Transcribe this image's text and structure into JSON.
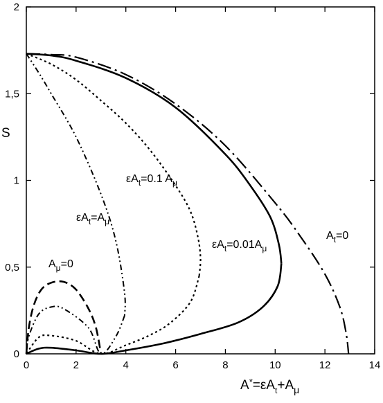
{
  "chart_data": {
    "type": "line",
    "xlim": [
      0,
      14
    ],
    "ylim": [
      0,
      2
    ],
    "x_ticks": [
      "0",
      "2",
      "4",
      "6",
      "8",
      "10",
      "12",
      "14"
    ],
    "y_ticks": [
      "0",
      "0,5",
      "1",
      "1,5",
      "2"
    ],
    "ylabel": "S",
    "xlabel": {
      "lhs": "A",
      "star": "*",
      "eq": "=εA",
      "sub_t": "t",
      "plus": "+A",
      "sub_mu": "μ"
    },
    "grid": false,
    "series": [
      {
        "style": "dashdot-long",
        "label": {
          "base": "A",
          "sub": "t",
          "rest": "=0"
        },
        "points": [
          [
            0,
            1.73
          ],
          [
            1,
            1.725
          ],
          [
            2,
            1.71
          ],
          [
            4,
            1.61
          ],
          [
            6,
            1.44
          ],
          [
            8,
            1.2
          ],
          [
            10,
            0.87
          ],
          [
            11,
            0.68
          ],
          [
            12,
            0.46
          ],
          [
            12.6,
            0.27
          ],
          [
            12.85,
            0.12
          ],
          [
            12.95,
            0
          ]
        ]
      },
      {
        "style": "solid",
        "label": {
          "base": "εA",
          "sub": "t",
          "rest": "=0.01A",
          "sub2": "μ"
        },
        "points_upper": [
          [
            0,
            1.73
          ],
          [
            1,
            1.72
          ],
          [
            2,
            1.69
          ],
          [
            4,
            1.59
          ],
          [
            6,
            1.42
          ],
          [
            8,
            1.15
          ],
          [
            9,
            0.97
          ],
          [
            9.8,
            0.79
          ],
          [
            10.15,
            0.63
          ],
          [
            10.25,
            0.52
          ]
        ],
        "points_lower": [
          [
            10.25,
            0.52
          ],
          [
            10.1,
            0.39
          ],
          [
            9.5,
            0.27
          ],
          [
            8.5,
            0.18
          ],
          [
            7,
            0.115
          ],
          [
            5.5,
            0.06
          ],
          [
            4,
            0.02
          ],
          [
            3,
            0
          ],
          [
            2,
            0.02
          ],
          [
            1,
            0.035
          ],
          [
            0.5,
            0.03
          ],
          [
            0,
            0
          ]
        ]
      },
      {
        "style": "dotted",
        "label": {
          "base": "εA",
          "sub": "t",
          "rest": "=0.1 A",
          "sub2": "μ"
        },
        "points_upper": [
          [
            0,
            1.73
          ],
          [
            1,
            1.67
          ],
          [
            2,
            1.58
          ],
          [
            3,
            1.46
          ],
          [
            4,
            1.33
          ],
          [
            5,
            1.17
          ],
          [
            6,
            0.97
          ],
          [
            6.6,
            0.82
          ],
          [
            6.9,
            0.67
          ],
          [
            7,
            0.55
          ],
          [
            6.95,
            0.45
          ]
        ],
        "points_lower": [
          [
            6.95,
            0.45
          ],
          [
            6.6,
            0.3
          ],
          [
            5.8,
            0.18
          ],
          [
            5,
            0.11
          ],
          [
            4,
            0.05
          ],
          [
            3,
            0
          ],
          [
            2,
            0.075
          ],
          [
            1,
            0.105
          ],
          [
            0.5,
            0.095
          ],
          [
            0,
            0
          ]
        ]
      },
      {
        "style": "dashdotdot",
        "label": {
          "base": "εA",
          "sub": "t",
          "rest": "=A",
          "sub2": "μ"
        },
        "points_upper": [
          [
            0,
            1.73
          ],
          [
            0.5,
            1.62
          ],
          [
            1,
            1.5
          ],
          [
            2,
            1.25
          ],
          [
            3,
            0.92
          ],
          [
            3.6,
            0.65
          ],
          [
            3.95,
            0.35
          ],
          [
            3.95,
            0.22
          ]
        ],
        "points_lower": [
          [
            3.95,
            0.22
          ],
          [
            3.6,
            0.1
          ],
          [
            3,
            0
          ],
          [
            2.5,
            0.15
          ],
          [
            1.5,
            0.26
          ],
          [
            1,
            0.27
          ],
          [
            0.5,
            0.23
          ],
          [
            0.1,
            0.1
          ],
          [
            0,
            0
          ]
        ]
      },
      {
        "style": "dashed",
        "label": {
          "base": "A",
          "sub": "μ",
          "rest": "=0"
        },
        "points": [
          [
            0,
            0
          ],
          [
            0.1,
            0.15
          ],
          [
            0.3,
            0.28
          ],
          [
            0.6,
            0.37
          ],
          [
            1,
            0.41
          ],
          [
            1.5,
            0.415
          ],
          [
            2,
            0.37
          ],
          [
            2.5,
            0.26
          ],
          [
            2.8,
            0.15
          ],
          [
            3,
            0
          ]
        ]
      }
    ]
  }
}
